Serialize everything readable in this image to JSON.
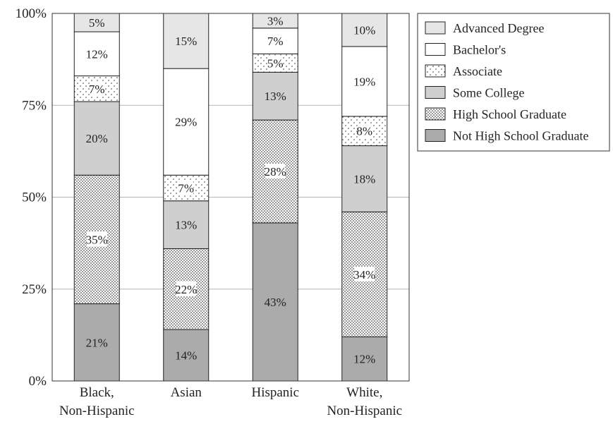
{
  "chart_data": {
    "type": "bar",
    "stacked": true,
    "percent": true,
    "categories": [
      "Black,\nNon-Hispanic",
      "Asian",
      "Hispanic",
      "White,\nNon-Hispanic"
    ],
    "series": [
      {
        "name": "Not High School Graduate",
        "values": [
          21,
          14,
          43,
          12
        ],
        "labels": [
          "21%",
          "14%",
          "43%",
          "12%"
        ],
        "fill": "#ababab",
        "pattern": "none"
      },
      {
        "name": "High School Graduate",
        "values": [
          35,
          22,
          28,
          34
        ],
        "labels": [
          "35%",
          "22%",
          "28%",
          "34%"
        ],
        "fill": "#ffffff",
        "pattern": "dense-dots"
      },
      {
        "name": "Some College",
        "values": [
          20,
          13,
          13,
          18
        ],
        "labels": [
          "20%",
          "13%",
          "13%",
          "18%"
        ],
        "fill": "#cfcfcf",
        "pattern": "none"
      },
      {
        "name": "Associate",
        "values": [
          7,
          7,
          5,
          8
        ],
        "labels": [
          "7%",
          "7%",
          "5%",
          "8%"
        ],
        "fill": "#ffffff",
        "pattern": "sparse-dots"
      },
      {
        "name": "Bachelor's",
        "values": [
          12,
          29,
          7,
          19
        ],
        "labels": [
          "12%",
          "29%",
          "7%",
          "19%"
        ],
        "fill": "#ffffff",
        "pattern": "none"
      },
      {
        "name": "Advanced Degree",
        "values": [
          5,
          15,
          3,
          10
        ],
        "labels": [
          "5%",
          "15%",
          "3%",
          "10%"
        ],
        "fill": "#e6e6e6",
        "pattern": "none"
      }
    ],
    "y_ticks": [
      "0%",
      "25%",
      "50%",
      "75%",
      "100%"
    ],
    "ylim": [
      0,
      100
    ],
    "grid": true,
    "legend_position": "top-right",
    "legend_order": [
      "Advanced Degree",
      "Bachelor's",
      "Associate",
      "Some College",
      "High School Graduate",
      "Not High School Graduate"
    ]
  }
}
